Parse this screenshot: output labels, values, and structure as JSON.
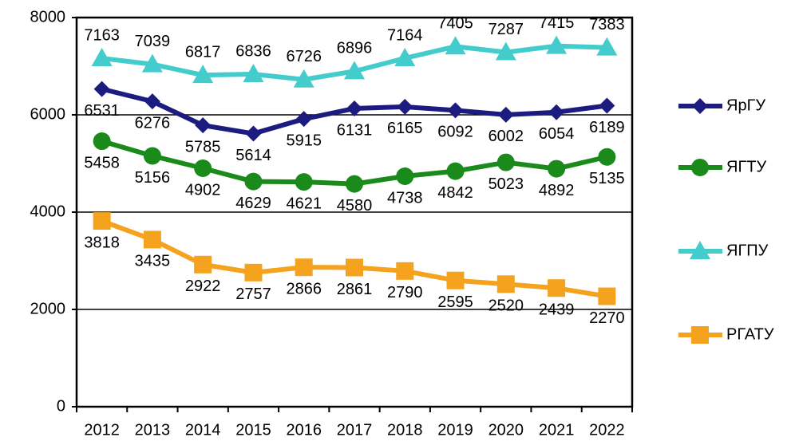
{
  "chart_data": {
    "type": "line",
    "categories": [
      "2012",
      "2013",
      "2014",
      "2015",
      "2016",
      "2017",
      "2018",
      "2019",
      "2020",
      "2021",
      "2022"
    ],
    "series": [
      {
        "name": "ЯрГУ",
        "color": "#1c1c80",
        "marker": "diamond",
        "label_position": "below",
        "values": [
          6531,
          6276,
          5785,
          5614,
          5915,
          6131,
          6165,
          6092,
          6002,
          6054,
          6189
        ]
      },
      {
        "name": "ЯГТУ",
        "color": "#1a8a1a",
        "marker": "circle",
        "label_position": "below",
        "values": [
          5458,
          5156,
          4902,
          4629,
          4621,
          4580,
          4738,
          4842,
          5023,
          4892,
          5135
        ]
      },
      {
        "name": "ЯГПУ",
        "color": "#44cccc",
        "marker": "triangle",
        "label_position": "above",
        "values": [
          7163,
          7039,
          6817,
          6836,
          6726,
          6896,
          7164,
          7405,
          7287,
          7415,
          7383
        ]
      },
      {
        "name": "РГАТУ",
        "color": "#f5a21f",
        "marker": "square",
        "label_position": "below",
        "values": [
          3818,
          3435,
          2922,
          2757,
          2866,
          2861,
          2790,
          2595,
          2520,
          2439,
          2270
        ]
      }
    ],
    "ylim": [
      0,
      8000
    ],
    "yticks": [
      0,
      2000,
      4000,
      6000,
      8000
    ],
    "grid": true,
    "legend": "right"
  }
}
